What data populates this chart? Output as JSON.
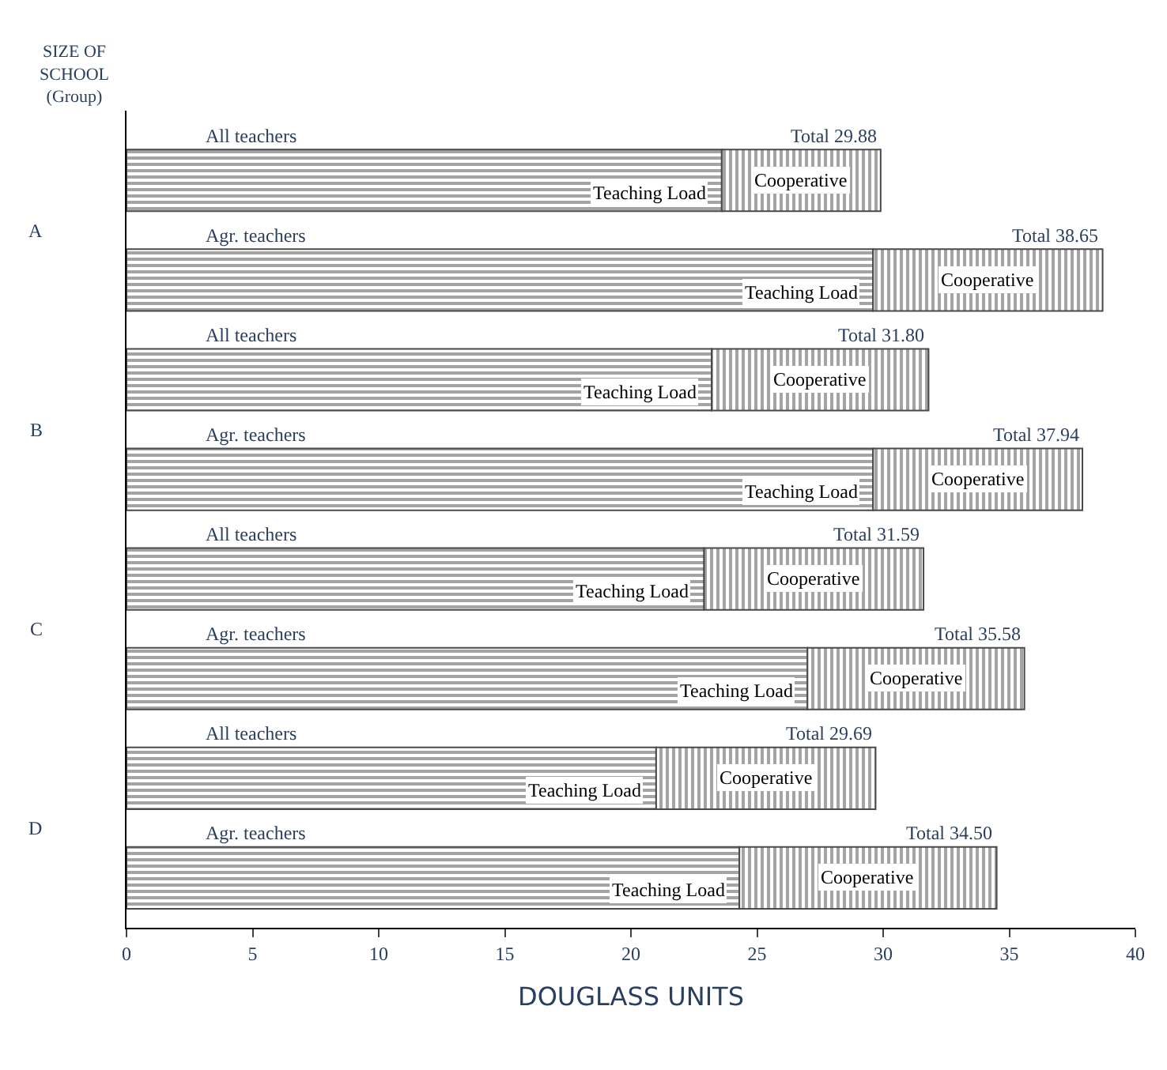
{
  "chart_data": {
    "type": "bar",
    "orientation": "horizontal",
    "stacked": true,
    "categories": [
      "All teachers",
      "Agr. teachers",
      "All teachers",
      "Agr. teachers",
      "All teachers",
      "Agr. teachers",
      "All teachers",
      "Agr. teachers"
    ],
    "series": [
      {
        "name": "Teaching Load",
        "color": "#4a4a4a",
        "values": [
          23.6,
          29.6,
          23.2,
          29.6,
          22.9,
          27.0,
          21.0,
          24.3
        ]
      },
      {
        "name": "Cooperative",
        "color": "#4a4a4a",
        "values": [
          6.3,
          9.1,
          8.6,
          8.3,
          8.7,
          8.6,
          8.7,
          10.2
        ]
      }
    ],
    "totals": [
      "Total 29.88",
      "Total 38.65",
      "Total 31.80",
      "Total 37.94",
      "Total 31.59",
      "Total 35.58",
      "Total 29.69",
      "Total 34.50"
    ],
    "annotations": [
      "A",
      "B",
      "C",
      "D"
    ],
    "xlabel": "DOUGLASS UNITS",
    "ylabel": "SIZE OF\nSCHOOL\n(Group)",
    "xlim": [
      0,
      40
    ],
    "xticks": [
      0,
      5,
      10,
      15,
      20,
      25,
      30,
      35,
      40
    ],
    "legend": false
  }
}
